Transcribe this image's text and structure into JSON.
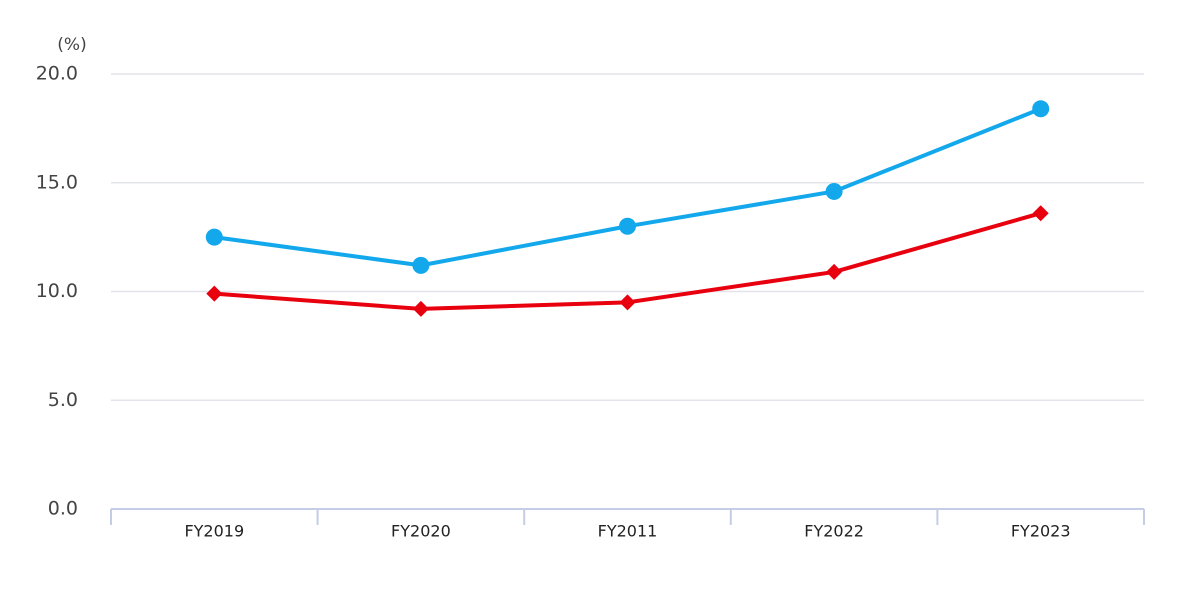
{
  "chart_data": {
    "type": "line",
    "y_label": "(%)",
    "categories": [
      "FY2019",
      "FY2020",
      "FY2011",
      "FY2022",
      "FY2023"
    ],
    "series": [
      {
        "color": "#13a8ec",
        "marker": "circle",
        "values": [
          12.5,
          11.2,
          13.0,
          14.6,
          18.4
        ]
      },
      {
        "color": "#e8000f",
        "marker": "diamond",
        "values": [
          9.9,
          9.2,
          9.5,
          10.9,
          13.6
        ]
      }
    ],
    "ylim": [
      0,
      20
    ],
    "yticks": [
      {
        "value": 0,
        "label": "0.0"
      },
      {
        "value": 5,
        "label": "5.0"
      },
      {
        "value": 10,
        "label": "10.0"
      },
      {
        "value": 15,
        "label": "15.0"
      },
      {
        "value": 20,
        "label": "20.0"
      }
    ],
    "grid": true
  }
}
